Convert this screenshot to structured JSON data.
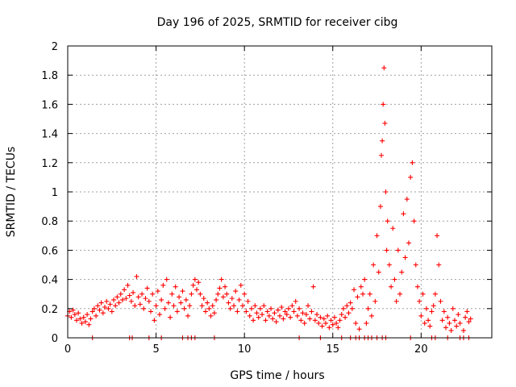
{
  "chart_data": {
    "type": "scatter",
    "title": "Day 196 of 2025, SRMTID for receiver cibg",
    "xlabel": "GPS time / hours",
    "ylabel": "SRMTID / TECUs",
    "xlim": [
      0,
      24
    ],
    "ylim": [
      0,
      2
    ],
    "xticks": [
      0,
      5,
      10,
      15,
      20
    ],
    "yticks": [
      0,
      0.2,
      0.4,
      0.6,
      0.8,
      1,
      1.2,
      1.4,
      1.6,
      1.8,
      2
    ],
    "xtick_labels": [
      "0",
      "5",
      "10",
      "15",
      "20"
    ],
    "ytick_labels": [
      "0",
      "0.2",
      "0.4",
      "0.6",
      "0.8",
      "1",
      "1.2",
      "1.4",
      "1.6",
      "1.8",
      "2"
    ],
    "grid": true,
    "marker": "plus",
    "color": "#ff0000",
    "series": [
      {
        "name": "SRMTID",
        "points": [
          [
            0.0,
            0.15
          ],
          [
            0.1,
            0.18
          ],
          [
            0.2,
            0.14
          ],
          [
            0.3,
            0.19
          ],
          [
            0.4,
            0.16
          ],
          [
            0.5,
            0.12
          ],
          [
            0.6,
            0.17
          ],
          [
            0.7,
            0.13
          ],
          [
            0.8,
            0.1
          ],
          [
            0.9,
            0.14
          ],
          [
            1.0,
            0.11
          ],
          [
            1.1,
            0.16
          ],
          [
            1.2,
            0.09
          ],
          [
            1.3,
            0.13
          ],
          [
            1.4,
            0.18
          ],
          [
            1.5,
            0.2
          ],
          [
            1.6,
            0.15
          ],
          [
            1.7,
            0.22
          ],
          [
            1.8,
            0.19
          ],
          [
            1.9,
            0.24
          ],
          [
            2.0,
            0.17
          ],
          [
            2.1,
            0.21
          ],
          [
            2.2,
            0.25
          ],
          [
            2.3,
            0.2
          ],
          [
            2.4,
            0.23
          ],
          [
            2.5,
            0.18
          ],
          [
            2.6,
            0.26
          ],
          [
            2.7,
            0.22
          ],
          [
            2.8,
            0.28
          ],
          [
            2.9,
            0.24
          ],
          [
            3.0,
            0.3
          ],
          [
            3.1,
            0.26
          ],
          [
            3.2,
            0.33
          ],
          [
            3.3,
            0.27
          ],
          [
            3.4,
            0.36
          ],
          [
            3.5,
            0.29
          ],
          [
            3.6,
            0.25
          ],
          [
            3.7,
            0.31
          ],
          [
            3.8,
            0.22
          ],
          [
            3.9,
            0.42
          ],
          [
            4.0,
            0.28
          ],
          [
            4.1,
            0.23
          ],
          [
            4.2,
            0.3
          ],
          [
            4.3,
            0.2
          ],
          [
            4.4,
            0.27
          ],
          [
            4.5,
            0.34
          ],
          [
            4.6,
            0.25
          ],
          [
            4.7,
            0.18
          ],
          [
            4.8,
            0.3
          ],
          [
            4.9,
            0.12
          ],
          [
            5.0,
            0.22
          ],
          [
            5.1,
            0.32
          ],
          [
            5.2,
            0.16
          ],
          [
            5.3,
            0.26
          ],
          [
            5.4,
            0.36
          ],
          [
            5.5,
            0.2
          ],
          [
            5.6,
            0.4
          ],
          [
            5.7,
            0.24
          ],
          [
            5.8,
            0.14
          ],
          [
            5.9,
            0.3
          ],
          [
            6.0,
            0.22
          ],
          [
            6.1,
            0.35
          ],
          [
            6.2,
            0.18
          ],
          [
            6.3,
            0.28
          ],
          [
            6.4,
            0.24
          ],
          [
            6.5,
            0.32
          ],
          [
            6.6,
            0.2
          ],
          [
            6.7,
            0.26
          ],
          [
            6.8,
            0.15
          ],
          [
            6.9,
            0.22
          ],
          [
            7.0,
            0.3
          ],
          [
            7.1,
            0.36
          ],
          [
            7.2,
            0.4
          ],
          [
            7.3,
            0.33
          ],
          [
            7.4,
            0.38
          ],
          [
            7.5,
            0.3
          ],
          [
            7.6,
            0.22
          ],
          [
            7.7,
            0.27
          ],
          [
            7.8,
            0.18
          ],
          [
            7.9,
            0.24
          ],
          [
            8.0,
            0.2
          ],
          [
            8.1,
            0.15
          ],
          [
            8.2,
            0.22
          ],
          [
            8.3,
            0.17
          ],
          [
            8.4,
            0.26
          ],
          [
            8.5,
            0.3
          ],
          [
            8.6,
            0.34
          ],
          [
            8.7,
            0.4
          ],
          [
            8.8,
            0.28
          ],
          [
            8.9,
            0.35
          ],
          [
            9.0,
            0.3
          ],
          [
            9.1,
            0.24
          ],
          [
            9.2,
            0.2
          ],
          [
            9.3,
            0.27
          ],
          [
            9.4,
            0.22
          ],
          [
            9.5,
            0.32
          ],
          [
            9.6,
            0.18
          ],
          [
            9.7,
            0.26
          ],
          [
            9.8,
            0.36
          ],
          [
            9.9,
            0.22
          ],
          [
            10.0,
            0.3
          ],
          [
            10.1,
            0.18
          ],
          [
            10.2,
            0.25
          ],
          [
            10.3,
            0.15
          ],
          [
            10.4,
            0.2
          ],
          [
            10.5,
            0.12
          ],
          [
            10.6,
            0.22
          ],
          [
            10.7,
            0.17
          ],
          [
            10.8,
            0.14
          ],
          [
            10.9,
            0.2
          ],
          [
            11.0,
            0.16
          ],
          [
            11.1,
            0.22
          ],
          [
            11.2,
            0.12
          ],
          [
            11.3,
            0.18
          ],
          [
            11.4,
            0.15
          ],
          [
            11.5,
            0.2
          ],
          [
            11.6,
            0.13
          ],
          [
            11.7,
            0.17
          ],
          [
            11.8,
            0.11
          ],
          [
            11.9,
            0.19
          ],
          [
            12.0,
            0.15
          ],
          [
            12.1,
            0.21
          ],
          [
            12.2,
            0.13
          ],
          [
            12.3,
            0.18
          ],
          [
            12.4,
            0.16
          ],
          [
            12.5,
            0.2
          ],
          [
            12.6,
            0.14
          ],
          [
            12.7,
            0.22
          ],
          [
            12.8,
            0.18
          ],
          [
            12.9,
            0.25
          ],
          [
            13.0,
            0.15
          ],
          [
            13.1,
            0.2
          ],
          [
            13.2,
            0.12
          ],
          [
            13.3,
            0.17
          ],
          [
            13.4,
            0.1
          ],
          [
            13.5,
            0.16
          ],
          [
            13.6,
            0.22
          ],
          [
            13.7,
            0.13
          ],
          [
            13.8,
            0.18
          ],
          [
            13.9,
            0.35
          ],
          [
            14.0,
            0.12
          ],
          [
            14.1,
            0.16
          ],
          [
            14.2,
            0.1
          ],
          [
            14.3,
            0.14
          ],
          [
            14.4,
            0.08
          ],
          [
            14.5,
            0.13
          ],
          [
            14.6,
            0.1
          ],
          [
            14.7,
            0.15
          ],
          [
            14.8,
            0.07
          ],
          [
            14.9,
            0.12
          ],
          [
            15.0,
            0.09
          ],
          [
            15.1,
            0.14
          ],
          [
            15.2,
            0.1
          ],
          [
            15.3,
            0.07
          ],
          [
            15.4,
            0.12
          ],
          [
            15.5,
            0.16
          ],
          [
            15.6,
            0.2
          ],
          [
            15.7,
            0.14
          ],
          [
            15.8,
            0.22
          ],
          [
            15.9,
            0.17
          ],
          [
            16.0,
            0.24
          ],
          [
            16.1,
            0.2
          ],
          [
            16.2,
            0.33
          ],
          [
            16.3,
            0.1
          ],
          [
            16.4,
            0.28
          ],
          [
            16.5,
            0.06
          ],
          [
            16.6,
            0.35
          ],
          [
            16.7,
            0.3
          ],
          [
            16.8,
            0.4
          ],
          [
            16.9,
            0.1
          ],
          [
            17.0,
            0.2
          ],
          [
            17.1,
            0.3
          ],
          [
            17.2,
            0.15
          ],
          [
            17.3,
            0.5
          ],
          [
            17.4,
            0.25
          ],
          [
            17.5,
            0.7
          ],
          [
            17.6,
            0.45
          ],
          [
            17.7,
            0.9
          ],
          [
            17.75,
            1.25
          ],
          [
            17.8,
            1.35
          ],
          [
            17.85,
            1.6
          ],
          [
            17.9,
            1.85
          ],
          [
            17.95,
            1.47
          ],
          [
            18.0,
            1.0
          ],
          [
            18.05,
            0.6
          ],
          [
            18.1,
            0.8
          ],
          [
            18.2,
            0.5
          ],
          [
            18.3,
            0.35
          ],
          [
            18.4,
            0.75
          ],
          [
            18.5,
            0.4
          ],
          [
            18.6,
            0.25
          ],
          [
            18.7,
            0.6
          ],
          [
            18.8,
            0.3
          ],
          [
            18.9,
            0.45
          ],
          [
            19.0,
            0.85
          ],
          [
            19.1,
            0.55
          ],
          [
            19.2,
            0.95
          ],
          [
            19.3,
            0.65
          ],
          [
            19.4,
            1.1
          ],
          [
            19.5,
            1.2
          ],
          [
            19.6,
            0.8
          ],
          [
            19.7,
            0.5
          ],
          [
            19.8,
            0.35
          ],
          [
            19.9,
            0.25
          ],
          [
            20.0,
            0.15
          ],
          [
            20.1,
            0.3
          ],
          [
            20.2,
            0.1
          ],
          [
            20.3,
            0.2
          ],
          [
            20.4,
            0.12
          ],
          [
            20.5,
            0.08
          ],
          [
            20.6,
            0.18
          ],
          [
            20.7,
            0.22
          ],
          [
            20.8,
            0.3
          ],
          [
            20.9,
            0.7
          ],
          [
            21.0,
            0.5
          ],
          [
            21.1,
            0.25
          ],
          [
            21.2,
            0.12
          ],
          [
            21.3,
            0.18
          ],
          [
            21.4,
            0.07
          ],
          [
            21.5,
            0.14
          ],
          [
            21.6,
            0.1
          ],
          [
            21.7,
            0.05
          ],
          [
            21.8,
            0.2
          ],
          [
            21.9,
            0.12
          ],
          [
            22.0,
            0.08
          ],
          [
            22.1,
            0.16
          ],
          [
            22.2,
            0.1
          ],
          [
            22.4,
            0.05
          ],
          [
            22.5,
            0.14
          ],
          [
            22.6,
            0.18
          ],
          [
            22.7,
            0.11
          ],
          [
            22.8,
            0.13
          ],
          [
            1.4,
            0.0
          ],
          [
            3.5,
            0.0
          ],
          [
            3.65,
            0.0
          ],
          [
            4.6,
            0.0
          ],
          [
            5.3,
            0.0
          ],
          [
            6.5,
            0.0
          ],
          [
            6.8,
            0.0
          ],
          [
            7.0,
            0.0
          ],
          [
            7.2,
            0.0
          ],
          [
            8.3,
            0.0
          ],
          [
            13.1,
            0.0
          ],
          [
            14.3,
            0.0
          ],
          [
            15.5,
            0.0
          ],
          [
            16.0,
            0.0
          ],
          [
            16.3,
            0.0
          ],
          [
            16.5,
            0.0
          ],
          [
            16.8,
            0.0
          ],
          [
            17.0,
            0.0
          ],
          [
            17.2,
            0.0
          ],
          [
            17.5,
            0.0
          ],
          [
            17.8,
            0.0
          ],
          [
            18.0,
            0.0
          ],
          [
            19.4,
            0.0
          ],
          [
            20.6,
            0.0
          ],
          [
            20.8,
            0.0
          ],
          [
            21.5,
            0.0
          ],
          [
            22.2,
            0.0
          ],
          [
            22.4,
            0.0
          ],
          [
            22.7,
            0.0
          ]
        ]
      }
    ]
  }
}
